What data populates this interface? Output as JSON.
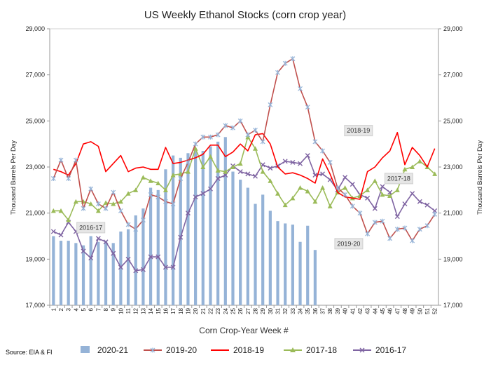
{
  "chart_data": {
    "type": "bar+line",
    "title": "US Weekly Ethanol Stocks (corn crop year)",
    "xlabel": "Corn Crop-Year Week #",
    "ylabel_left": "Thousand Barrels Per Day",
    "ylabel_right": "Thousand Barrels Per Day",
    "ylim": [
      17000,
      29000
    ],
    "yticks": [
      17000,
      19000,
      21000,
      23000,
      25000,
      27000,
      29000
    ],
    "ytick_labels": [
      "17,000",
      "19,000",
      "21,000",
      "23,000",
      "25,000",
      "27,000",
      "29,000"
    ],
    "categories": [
      "1",
      "2",
      "3",
      "4",
      "5",
      "6",
      "7",
      "8",
      "9",
      "10",
      "11",
      "12",
      "13",
      "14",
      "15",
      "16",
      "17",
      "18",
      "19",
      "20",
      "21",
      "22",
      "23",
      "24",
      "25",
      "26",
      "27",
      "28",
      "29",
      "30",
      "31",
      "32",
      "33",
      "34",
      "35",
      "36",
      "37",
      "38",
      "39",
      "40",
      "41",
      "42",
      "43",
      "44",
      "45",
      "46",
      "47",
      "48",
      "49",
      "50",
      "51",
      "52"
    ],
    "source": "Source: EIA & FI",
    "annotations": [
      {
        "text": "2018-19",
        "week": 41.8,
        "value": 24580
      },
      {
        "text": "2017-18",
        "week": 47.2,
        "value": 22500
      },
      {
        "text": "2016-17",
        "week": 6.0,
        "value": 20370
      },
      {
        "text": "2019-20",
        "week": 40.5,
        "value": 19670
      }
    ],
    "series": [
      {
        "name": "2020-21",
        "kind": "bar",
        "color": "#95b3d7",
        "values": [
          20000,
          19800,
          19800,
          19700,
          19600,
          20000,
          19750,
          19800,
          19700,
          20200,
          20300,
          20900,
          21200,
          22100,
          22000,
          22900,
          23500,
          23400,
          23600,
          23700,
          23700,
          23900,
          24100,
          24300,
          22800,
          22450,
          22100,
          21400,
          21800,
          21100,
          20650,
          20550,
          20500,
          19750,
          20450,
          19400,
          null,
          null,
          null,
          null,
          null,
          null,
          null,
          null,
          null,
          null,
          null,
          null,
          null,
          null,
          null,
          null
        ]
      },
      {
        "name": "2019-20",
        "kind": "line",
        "color": "#95b3d7",
        "marker": "star",
        "line_color": "#c0504d",
        "values": [
          22500,
          23300,
          22500,
          23300,
          21200,
          22050,
          21400,
          21200,
          21900,
          21100,
          20500,
          20300,
          20700,
          21800,
          21700,
          21500,
          21400,
          22500,
          23200,
          24000,
          24300,
          24300,
          24400,
          24800,
          24700,
          25000,
          24400,
          24600,
          24100,
          25700,
          27100,
          27500,
          27700,
          26400,
          25600,
          24100,
          23700,
          23200,
          22100,
          21800,
          21300,
          21000,
          20100,
          20600,
          20650,
          19900,
          20300,
          20350,
          19800,
          20300,
          20450,
          20950
        ]
      },
      {
        "name": "2018-19",
        "kind": "line",
        "color": "#ff0000",
        "values": [
          22900,
          22800,
          22650,
          23150,
          24000,
          24100,
          23900,
          22800,
          23150,
          23500,
          22800,
          22950,
          23000,
          22900,
          22900,
          23850,
          23150,
          23200,
          23300,
          23400,
          23550,
          23950,
          23950,
          23450,
          23650,
          24000,
          23700,
          24400,
          24450,
          24000,
          23000,
          22700,
          22750,
          22650,
          22500,
          22300,
          23350,
          22700,
          21900,
          21700,
          21650,
          21600,
          22800,
          23000,
          23400,
          23700,
          24500,
          23100,
          23850,
          23500,
          23000,
          23800
        ]
      },
      {
        "name": "2017-18",
        "kind": "line",
        "color": "#9bbb59",
        "marker": "triangle",
        "values": [
          21100,
          21100,
          20700,
          21500,
          21500,
          21400,
          21100,
          21450,
          21400,
          21500,
          21850,
          22000,
          22550,
          22400,
          22300,
          22000,
          22650,
          22700,
          22800,
          23800,
          23000,
          23450,
          22850,
          22800,
          23000,
          23150,
          24300,
          23800,
          22800,
          22400,
          21850,
          21350,
          21650,
          22100,
          21950,
          21500,
          22100,
          21300,
          21900,
          22100,
          21650,
          21750,
          22000,
          22400,
          21800,
          21750,
          22000,
          22900,
          23000,
          23250,
          23000,
          22700
        ]
      },
      {
        "name": "2016-17",
        "kind": "line",
        "color": "#7f64a2",
        "marker": "x",
        "values": [
          20200,
          20050,
          20600,
          20200,
          19350,
          19050,
          19900,
          19750,
          19250,
          18650,
          19000,
          18500,
          18550,
          19100,
          19100,
          18650,
          18650,
          19950,
          21000,
          21700,
          21850,
          22050,
          22500,
          22650,
          23050,
          22800,
          22700,
          22600,
          23100,
          22950,
          23050,
          23250,
          23200,
          23150,
          23500,
          22650,
          22700,
          22450,
          22000,
          22550,
          22250,
          21800,
          21650,
          21200,
          22150,
          21900,
          20850,
          21400,
          21850,
          21500,
          21350,
          21100
        ]
      }
    ]
  }
}
